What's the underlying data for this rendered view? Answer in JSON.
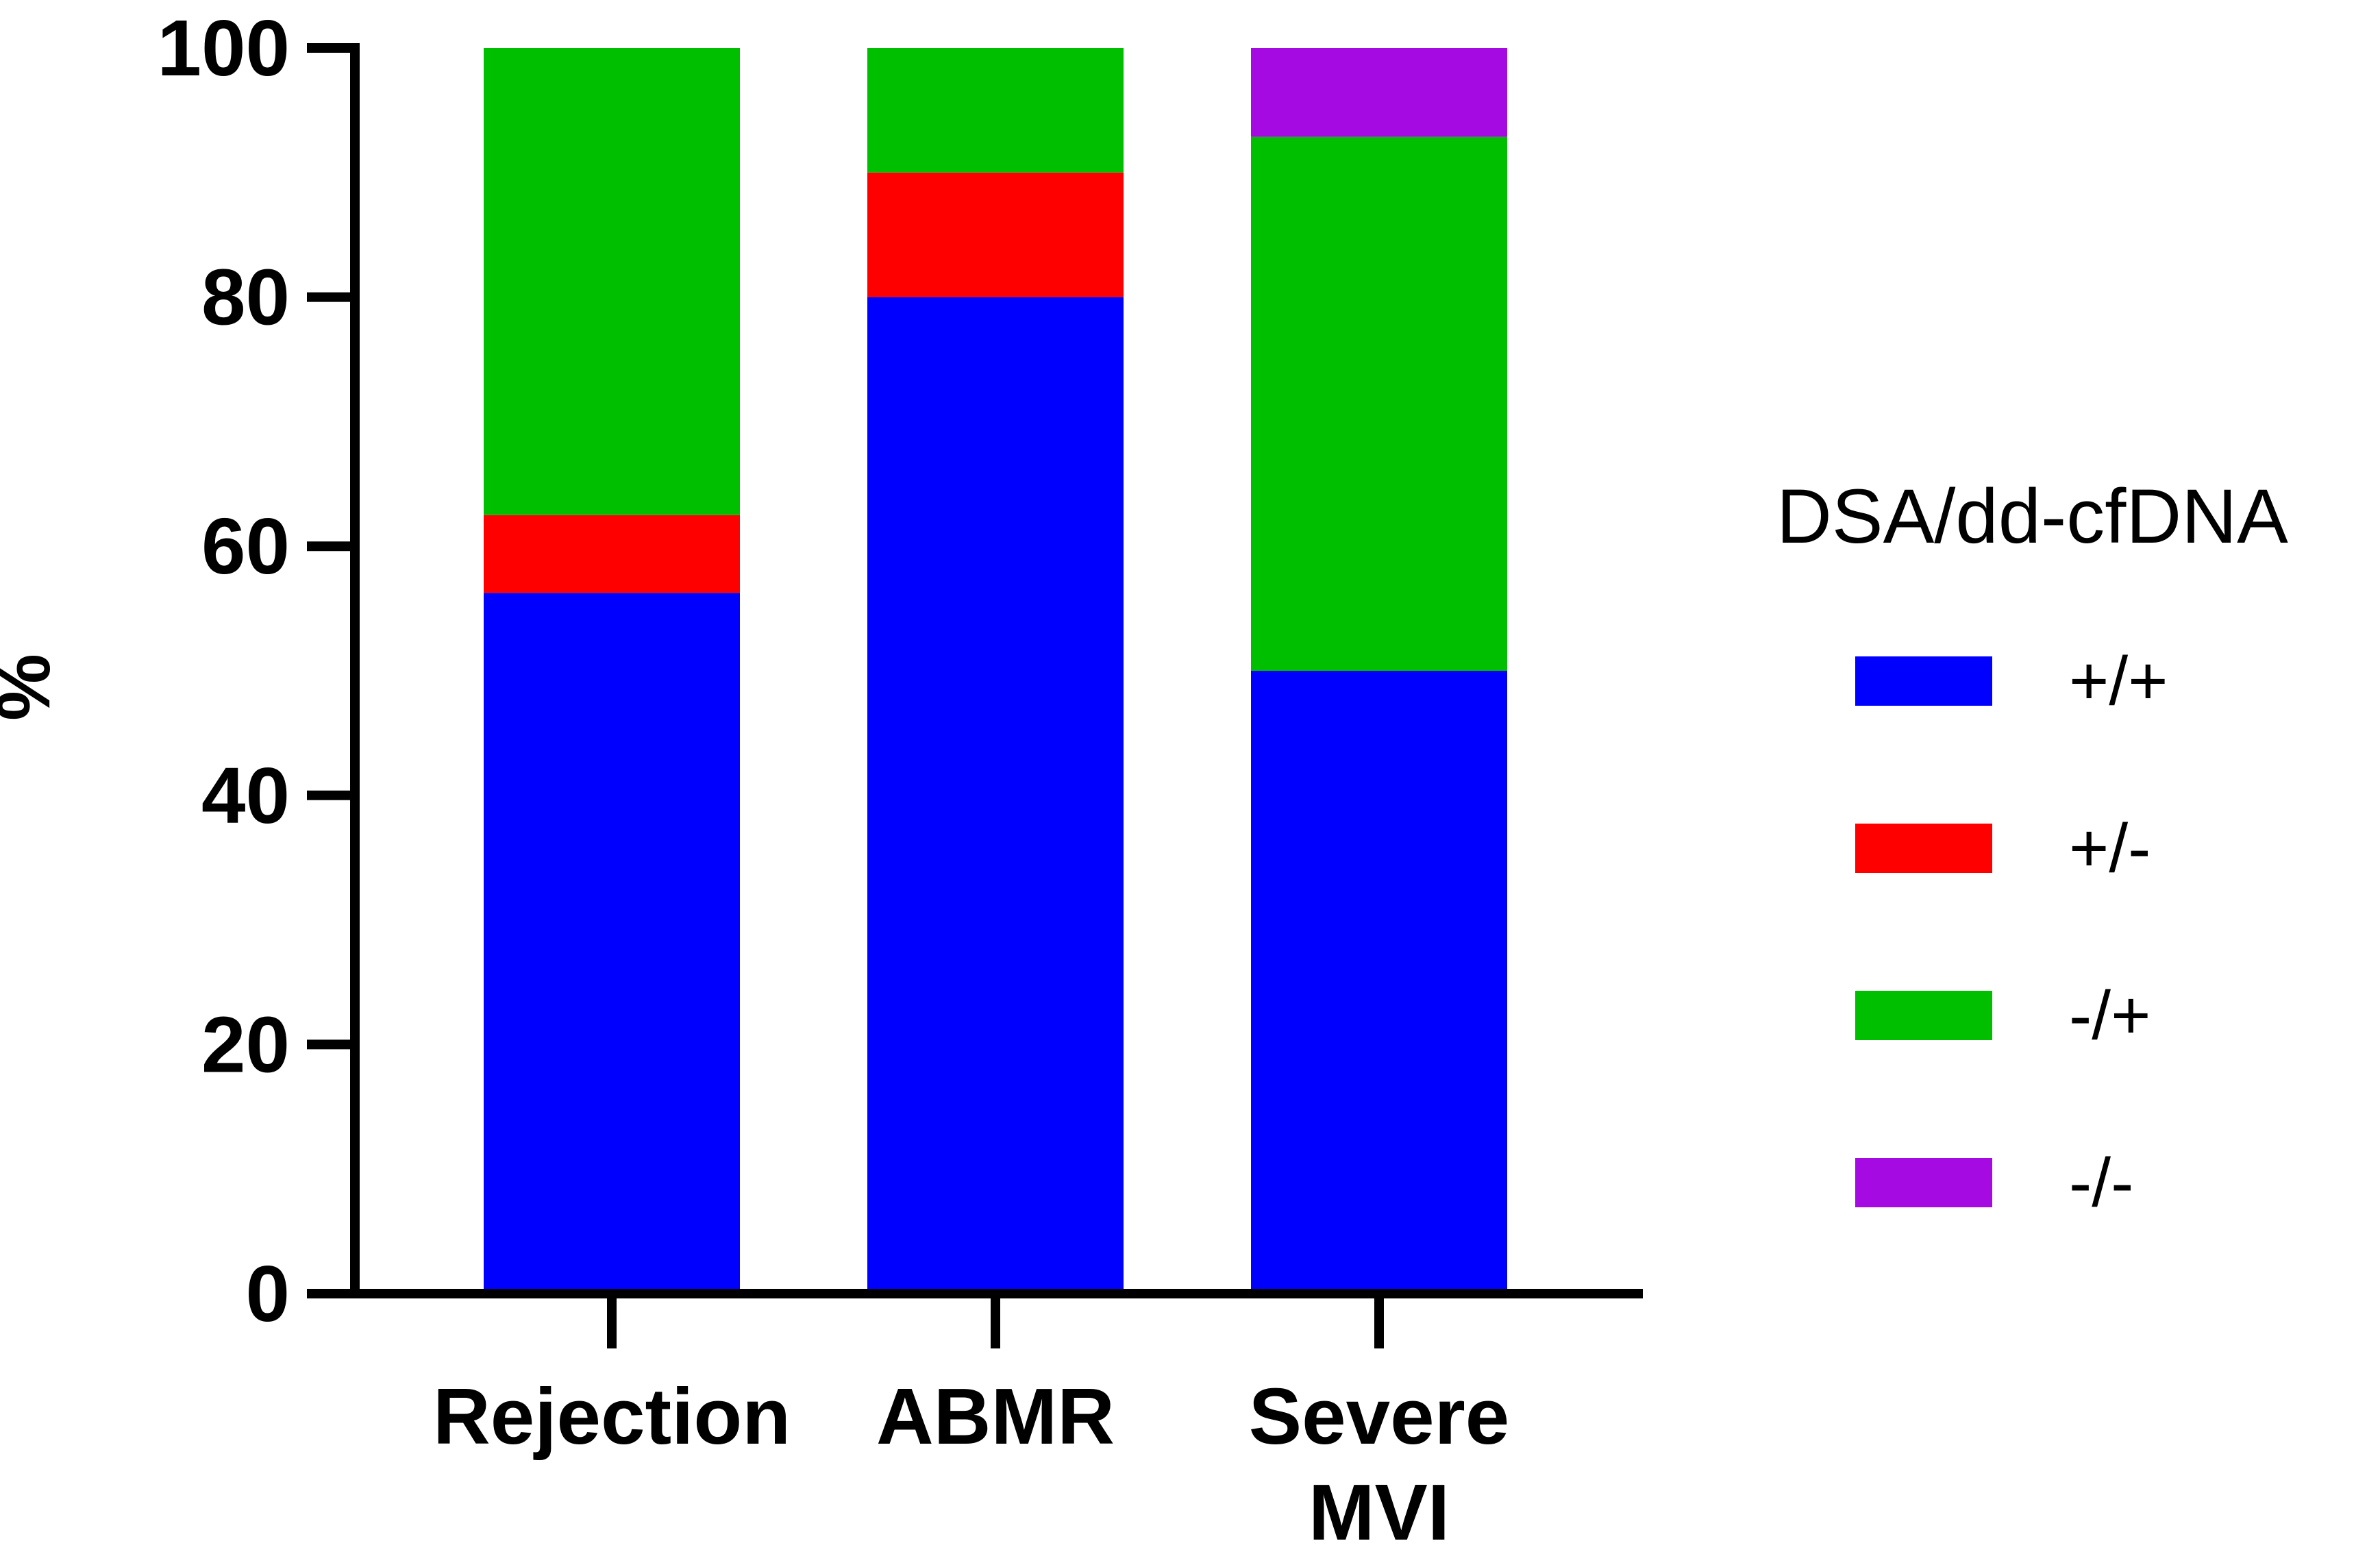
{
  "chart_data": {
    "type": "bar",
    "stacked": true,
    "title": "",
    "xlabel": "",
    "ylabel": "%",
    "ylim": [
      0,
      100
    ],
    "yticks": [
      "0",
      "20",
      "40",
      "60",
      "80",
      "100"
    ],
    "categories": [
      [
        "Rejection"
      ],
      [
        "ABMR"
      ],
      [
        "Severe",
        "MVI"
      ]
    ],
    "legend_title": "DSA/dd-cfDNA",
    "legend_position": "right",
    "series": [
      {
        "name": "+/+",
        "color": "#0000ff",
        "values": [
          56.25,
          80,
          50
        ]
      },
      {
        "name": "+/-",
        "color": "#ff0000",
        "values": [
          6.25,
          10,
          0
        ]
      },
      {
        "name": "-/+",
        "color": "#00bf00",
        "values": [
          37.5,
          10,
          42.86
        ]
      },
      {
        "name": "-/-",
        "color": "#a60ae3",
        "values": [
          0,
          0,
          7.14
        ]
      }
    ]
  }
}
